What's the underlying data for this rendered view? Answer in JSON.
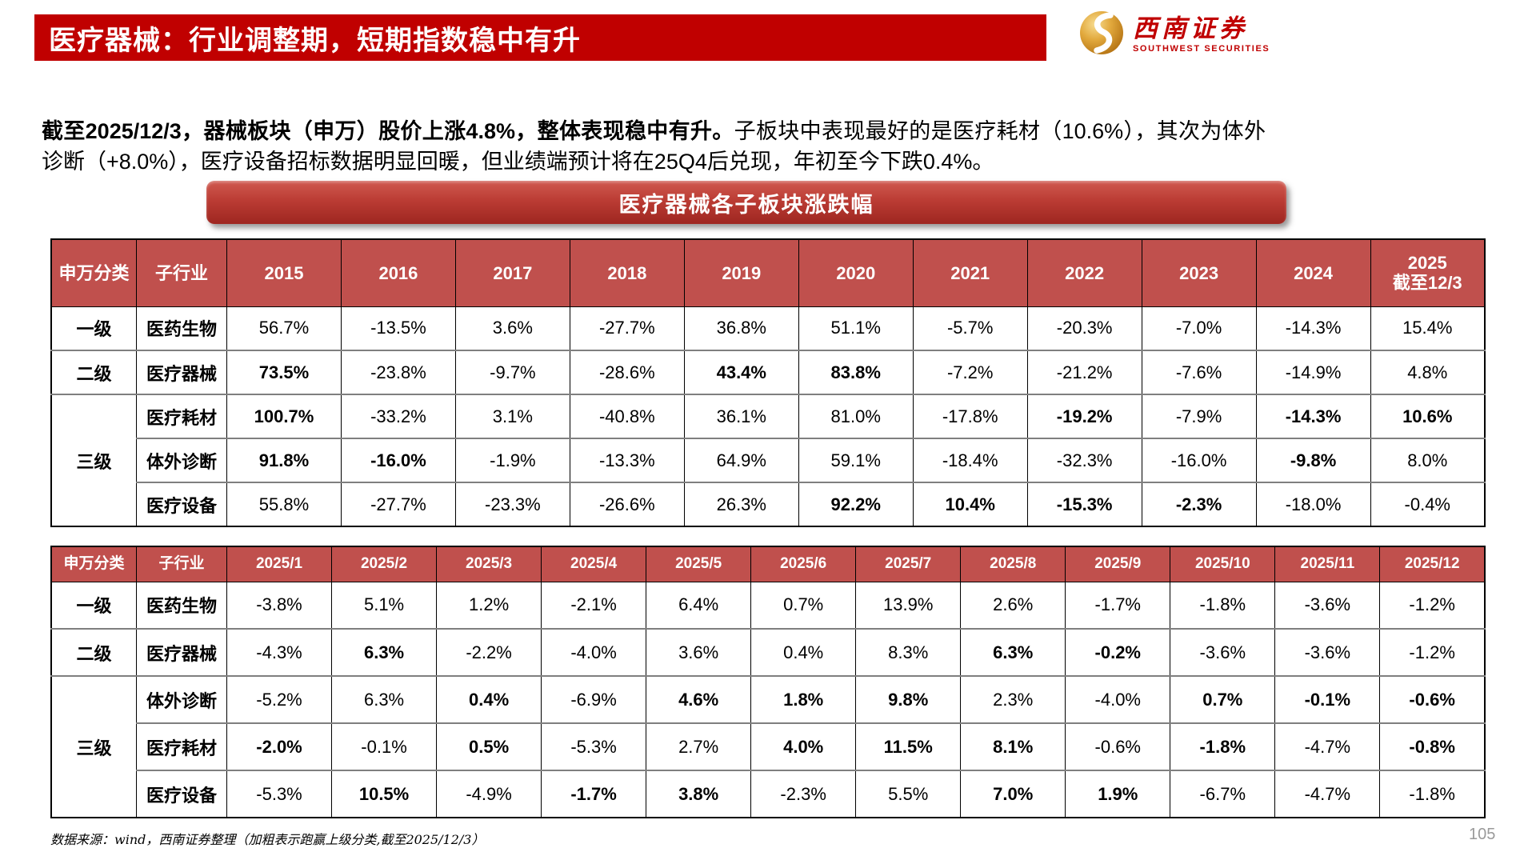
{
  "header": {
    "title": "医疗器械：行业调整期，短期指数稳中有升"
  },
  "logo": {
    "cn": "西南证券",
    "en": "SOUTHWEST SECURITIES",
    "icon": "gold-swirl-sphere"
  },
  "intro": {
    "bold": "截至2025/12/3，器械板块（申万）股价上涨4.8%，整体表现稳中有升。",
    "normal": "子板块中表现最好的是医疗耗材（10.6%），其次为体外诊断（+8.0%），医疗设备招标数据明显回暖，但业绩端预计将在25Q4后兑现，年初至今下跌0.4%。"
  },
  "banner": {
    "label": "医疗器械各子板块涨跌幅"
  },
  "colors": {
    "accent": "#c00000",
    "table_header": "#c0504d",
    "banner_top": "#d05a50",
    "banner_bottom": "#9e2620"
  },
  "tables": [
    {
      "name": "yearly-performance",
      "headers": [
        "申万分类",
        "子行业",
        "2015",
        "2016",
        "2017",
        "2018",
        "2019",
        "2020",
        "2021",
        "2022",
        "2023",
        "2024",
        "2025\n截至12/3"
      ],
      "groups": [
        {
          "label": "一级",
          "rows": [
            {
              "name": "医药生物",
              "cells": [
                {
                  "v": "56.7%"
                },
                {
                  "v": "-13.5%"
                },
                {
                  "v": "3.6%"
                },
                {
                  "v": "-27.7%"
                },
                {
                  "v": "36.8%"
                },
                {
                  "v": "51.1%"
                },
                {
                  "v": "-5.7%"
                },
                {
                  "v": "-20.3%"
                },
                {
                  "v": "-7.0%"
                },
                {
                  "v": "-14.3%"
                },
                {
                  "v": "15.4%"
                }
              ]
            }
          ]
        },
        {
          "label": "二级",
          "rows": [
            {
              "name": "医疗器械",
              "cells": [
                {
                  "v": "73.5%",
                  "b": true
                },
                {
                  "v": "-23.8%"
                },
                {
                  "v": "-9.7%"
                },
                {
                  "v": "-28.6%"
                },
                {
                  "v": "43.4%",
                  "b": true
                },
                {
                  "v": "83.8%",
                  "b": true
                },
                {
                  "v": "-7.2%"
                },
                {
                  "v": "-21.2%"
                },
                {
                  "v": "-7.6%"
                },
                {
                  "v": "-14.9%"
                },
                {
                  "v": "4.8%"
                }
              ]
            }
          ]
        },
        {
          "label": "三级",
          "rows": [
            {
              "name": "医疗耗材",
              "cells": [
                {
                  "v": "100.7%",
                  "b": true
                },
                {
                  "v": "-33.2%"
                },
                {
                  "v": "3.1%"
                },
                {
                  "v": "-40.8%"
                },
                {
                  "v": "36.1%"
                },
                {
                  "v": "81.0%"
                },
                {
                  "v": "-17.8%"
                },
                {
                  "v": "-19.2%",
                  "b": true
                },
                {
                  "v": "-7.9%"
                },
                {
                  "v": "-14.3%",
                  "b": true
                },
                {
                  "v": "10.6%",
                  "b": true
                }
              ]
            },
            {
              "name": "体外诊断",
              "cells": [
                {
                  "v": "91.8%",
                  "b": true
                },
                {
                  "v": "-16.0%",
                  "b": true
                },
                {
                  "v": "-1.9%"
                },
                {
                  "v": "-13.3%"
                },
                {
                  "v": "64.9%"
                },
                {
                  "v": "59.1%"
                },
                {
                  "v": "-18.4%"
                },
                {
                  "v": "-32.3%"
                },
                {
                  "v": "-16.0%"
                },
                {
                  "v": "-9.8%",
                  "b": true
                },
                {
                  "v": "8.0%"
                }
              ]
            },
            {
              "name": "医疗设备",
              "cells": [
                {
                  "v": "55.8%"
                },
                {
                  "v": "-27.7%"
                },
                {
                  "v": "-23.3%"
                },
                {
                  "v": "-26.6%"
                },
                {
                  "v": "26.3%"
                },
                {
                  "v": "92.2%",
                  "b": true
                },
                {
                  "v": "10.4%",
                  "b": true
                },
                {
                  "v": "-15.3%",
                  "b": true
                },
                {
                  "v": "-2.3%",
                  "b": true
                },
                {
                  "v": "-18.0%"
                },
                {
                  "v": "-0.4%"
                }
              ]
            }
          ]
        }
      ]
    },
    {
      "name": "monthly-performance-2025",
      "headers": [
        "申万分类",
        "子行业",
        "2025/1",
        "2025/2",
        "2025/3",
        "2025/4",
        "2025/5",
        "2025/6",
        "2025/7",
        "2025/8",
        "2025/9",
        "2025/10",
        "2025/11",
        "2025/12"
      ],
      "groups": [
        {
          "label": "一级",
          "rows": [
            {
              "name": "医药生物",
              "cells": [
                {
                  "v": "-3.8%"
                },
                {
                  "v": "5.1%"
                },
                {
                  "v": "1.2%"
                },
                {
                  "v": "-2.1%"
                },
                {
                  "v": "6.4%"
                },
                {
                  "v": "0.7%"
                },
                {
                  "v": "13.9%"
                },
                {
                  "v": "2.6%"
                },
                {
                  "v": "-1.7%"
                },
                {
                  "v": "-1.8%"
                },
                {
                  "v": "-3.6%"
                },
                {
                  "v": "-1.2%"
                }
              ]
            }
          ]
        },
        {
          "label": "二级",
          "rows": [
            {
              "name": "医疗器械",
              "cells": [
                {
                  "v": "-4.3%"
                },
                {
                  "v": "6.3%",
                  "b": true
                },
                {
                  "v": "-2.2%"
                },
                {
                  "v": "-4.0%"
                },
                {
                  "v": "3.6%"
                },
                {
                  "v": "0.4%"
                },
                {
                  "v": "8.3%"
                },
                {
                  "v": "6.3%",
                  "b": true
                },
                {
                  "v": "-0.2%",
                  "b": true
                },
                {
                  "v": "-3.6%"
                },
                {
                  "v": "-3.6%"
                },
                {
                  "v": "-1.2%"
                }
              ]
            }
          ]
        },
        {
          "label": "三级",
          "rows": [
            {
              "name": "体外诊断",
              "cells": [
                {
                  "v": "-5.2%"
                },
                {
                  "v": "6.3%"
                },
                {
                  "v": "0.4%",
                  "b": true
                },
                {
                  "v": "-6.9%"
                },
                {
                  "v": "4.6%",
                  "b": true
                },
                {
                  "v": "1.8%",
                  "b": true
                },
                {
                  "v": "9.8%",
                  "b": true
                },
                {
                  "v": "2.3%"
                },
                {
                  "v": "-4.0%"
                },
                {
                  "v": "0.7%",
                  "b": true
                },
                {
                  "v": "-0.1%",
                  "b": true
                },
                {
                  "v": "-0.6%",
                  "b": true
                }
              ]
            },
            {
              "name": "医疗耗材",
              "cells": [
                {
                  "v": "-2.0%",
                  "b": true
                },
                {
                  "v": "-0.1%"
                },
                {
                  "v": "0.5%",
                  "b": true
                },
                {
                  "v": "-5.3%"
                },
                {
                  "v": "2.7%"
                },
                {
                  "v": "4.0%",
                  "b": true
                },
                {
                  "v": "11.5%",
                  "b": true
                },
                {
                  "v": "8.1%",
                  "b": true
                },
                {
                  "v": "-0.6%"
                },
                {
                  "v": "-1.8%",
                  "b": true
                },
                {
                  "v": "-4.7%"
                },
                {
                  "v": "-0.8%",
                  "b": true
                }
              ]
            },
            {
              "name": "医疗设备",
              "cells": [
                {
                  "v": "-5.3%"
                },
                {
                  "v": "10.5%",
                  "b": true
                },
                {
                  "v": "-4.9%"
                },
                {
                  "v": "-1.7%",
                  "b": true
                },
                {
                  "v": "3.8%",
                  "b": true
                },
                {
                  "v": "-2.3%"
                },
                {
                  "v": "5.5%"
                },
                {
                  "v": "7.0%",
                  "b": true
                },
                {
                  "v": "1.9%",
                  "b": true
                },
                {
                  "v": "-6.7%"
                },
                {
                  "v": "-4.7%"
                },
                {
                  "v": "-1.8%"
                }
              ]
            }
          ]
        }
      ]
    }
  ],
  "footer": {
    "note": "数据来源：wind，西南证券整理（加粗表示跑赢上级分类,截至2025/12/3）"
  },
  "page": {
    "number": "105"
  }
}
